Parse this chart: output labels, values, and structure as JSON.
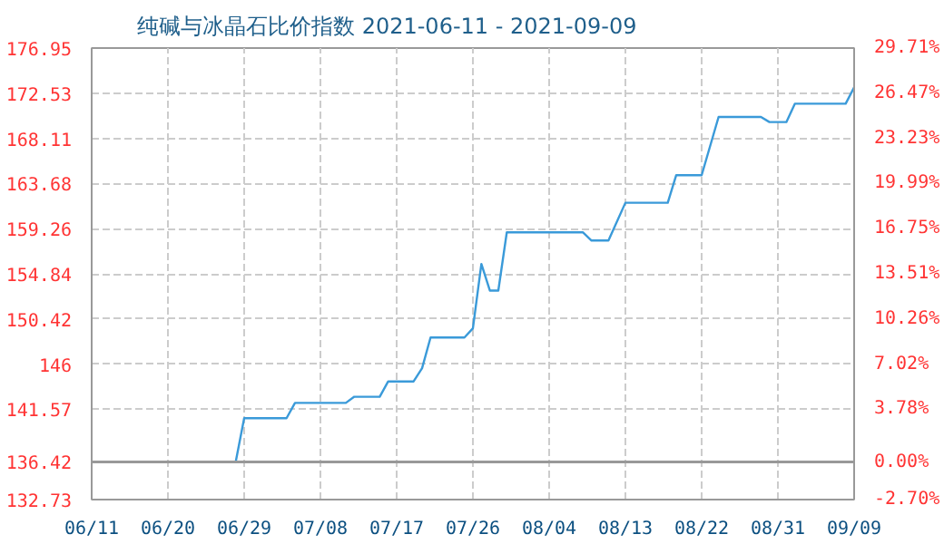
{
  "chart_data": {
    "type": "line",
    "title": "纯碱与冰晶石比价指数 2021-06-11 - 2021-09-09",
    "x": [
      "2021-06-11",
      "2021-06-28",
      "2021-06-29",
      "2021-07-04",
      "2021-07-05",
      "2021-07-11",
      "2021-07-12",
      "2021-07-15",
      "2021-07-16",
      "2021-07-19",
      "2021-07-20",
      "2021-07-21",
      "2021-07-25",
      "2021-07-26",
      "2021-07-27",
      "2021-07-28",
      "2021-07-29",
      "2021-07-30",
      "2021-08-08",
      "2021-08-09",
      "2021-08-11",
      "2021-08-13",
      "2021-08-18",
      "2021-08-19",
      "2021-08-22",
      "2021-08-24",
      "2021-08-29",
      "2021-08-30",
      "2021-09-01",
      "2021-09-02",
      "2021-09-08",
      "2021-09-09"
    ],
    "series": [
      {
        "color": "#3a9ad9",
        "values": [
          136.42,
          136.42,
          140.7,
          140.7,
          142.2,
          142.2,
          142.8,
          142.8,
          144.3,
          144.3,
          145.6,
          148.6,
          148.6,
          149.5,
          155.8,
          153.2,
          153.2,
          158.9,
          158.9,
          158.1,
          158.1,
          161.8,
          161.8,
          164.5,
          164.5,
          170.2,
          170.2,
          169.7,
          169.7,
          171.5,
          171.5,
          173.1
        ]
      }
    ],
    "xlim": [
      "2021-06-11",
      "2021-09-09"
    ],
    "xticks": [
      {
        "value": "2021-06-11",
        "label": "06/11"
      },
      {
        "value": "2021-06-20",
        "label": "06/20"
      },
      {
        "value": "2021-06-29",
        "label": "06/29"
      },
      {
        "value": "2021-07-08",
        "label": "07/08"
      },
      {
        "value": "2021-07-17",
        "label": "07/17"
      },
      {
        "value": "2021-07-26",
        "label": "07/26"
      },
      {
        "value": "2021-08-04",
        "label": "08/04"
      },
      {
        "value": "2021-08-13",
        "label": "08/13"
      },
      {
        "value": "2021-08-22",
        "label": "08/22"
      },
      {
        "value": "2021-08-31",
        "label": "08/31"
      },
      {
        "value": "2021-09-09",
        "label": "09/09"
      }
    ],
    "ylim": [
      132.73,
      176.95
    ],
    "yticks": [
      132.73,
      136.42,
      141.57,
      146,
      150.42,
      154.84,
      159.26,
      163.68,
      168.11,
      172.53,
      176.95
    ],
    "y2lim": [
      -2.7,
      29.71
    ],
    "y2ticks": [
      {
        "value": -2.7,
        "label": "-2.70%"
      },
      {
        "value": 0,
        "label": "0.00%"
      },
      {
        "value": 3.78,
        "label": "3.78%"
      },
      {
        "value": 7.02,
        "label": "7.02%"
      },
      {
        "value": 10.26,
        "label": "10.26%"
      },
      {
        "value": 13.51,
        "label": "13.51%"
      },
      {
        "value": 16.75,
        "label": "16.75%"
      },
      {
        "value": 19.99,
        "label": "19.99%"
      },
      {
        "value": 23.23,
        "label": "23.23%"
      },
      {
        "value": 26.47,
        "label": "26.47%"
      },
      {
        "value": 29.71,
        "label": "29.71%"
      }
    ],
    "ref_lines": [
      {
        "axis": "y",
        "value": 136.42,
        "color": "#999999"
      }
    ],
    "grid": true,
    "line_style": "solid",
    "marker": "none"
  }
}
